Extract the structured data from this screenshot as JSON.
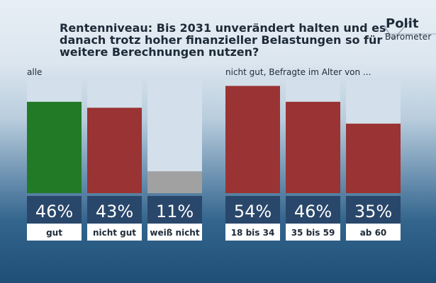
{
  "chart_data": [
    {
      "type": "bar",
      "title": "Rentenniveau: Bis 2031 unverändert halten und es danach trotz hoher finanzieller Belastungen so für weitere Berechnungen nutzen?",
      "group_label": "alle",
      "categories": [
        "gut",
        "nicht gut",
        "weiß nicht"
      ],
      "values": [
        46,
        43,
        11
      ],
      "value_labels": [
        "46%",
        "43%",
        "11%"
      ],
      "colors": [
        "#227a26",
        "#9a3333",
        "#a1a1a1"
      ],
      "ylim": [
        0,
        57
      ]
    },
    {
      "type": "bar",
      "group_label": "nicht gut, Befragte im Alter von ...",
      "categories": [
        "18 bis 34",
        "35 bis 59",
        "ab 60"
      ],
      "values": [
        54,
        46,
        35
      ],
      "value_labels": [
        "54%",
        "46%",
        "35%"
      ],
      "colors": [
        "#9a3333",
        "#9a3333",
        "#9a3333"
      ],
      "ylim": [
        0,
        57
      ]
    }
  ],
  "logo": {
    "line1": "Polit",
    "line2": "Barometer"
  },
  "colors": {
    "track": "#d3dfea",
    "label_band": "#29476a",
    "category_band": "#ffffff"
  }
}
